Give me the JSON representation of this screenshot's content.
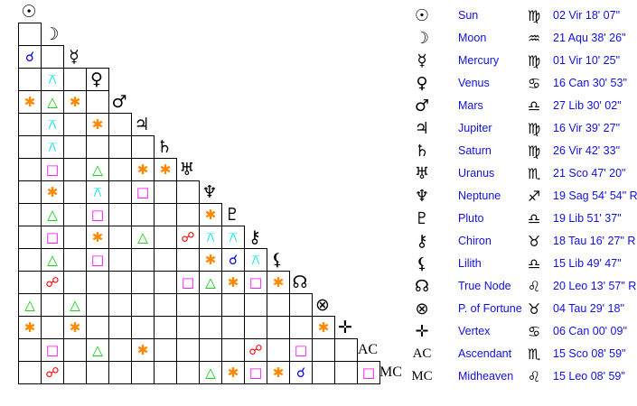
{
  "aspect_symbols": {
    "conjunction": {
      "glyph": "☌",
      "color": "#0000ff"
    },
    "sextile": {
      "glyph": "✱",
      "color": "#ff8800"
    },
    "trine": {
      "glyph": "△",
      "color": "#00cc00"
    },
    "square": {
      "glyph": "□",
      "color": "#ff00ff"
    },
    "opposition": {
      "glyph": "☍",
      "color": "#ff0000"
    },
    "quincunx": {
      "glyph": "⚻",
      "color": "#00e5e5"
    }
  },
  "bodies": [
    {
      "icon": "sun-icon",
      "glyph": "☉",
      "name": "Sun",
      "sign_icon": "virgo-icon",
      "sign": "♍",
      "position": "02 Vir 18' 07\""
    },
    {
      "icon": "moon-icon",
      "glyph": "☽",
      "name": "Moon",
      "sign_icon": "aquarius-icon",
      "sign": "♒",
      "position": "21 Aqu 38' 26\""
    },
    {
      "icon": "mercury-icon",
      "glyph": "☿",
      "name": "Mercury",
      "sign_icon": "virgo-icon",
      "sign": "♍",
      "position": "01 Vir 10' 25\""
    },
    {
      "icon": "venus-icon",
      "glyph": "♀",
      "name": "Venus",
      "sign_icon": "cancer-icon",
      "sign": "♋",
      "position": "16 Can 30' 53\""
    },
    {
      "icon": "mars-icon",
      "glyph": "♂",
      "name": "Mars",
      "sign_icon": "libra-icon",
      "sign": "♎",
      "position": "27 Lib 30' 02\""
    },
    {
      "icon": "jupiter-icon",
      "glyph": "♃",
      "name": "Jupiter",
      "sign_icon": "virgo-icon",
      "sign": "♍",
      "position": "16 Vir 39' 27\""
    },
    {
      "icon": "saturn-icon",
      "glyph": "♄",
      "name": "Saturn",
      "sign_icon": "virgo-icon",
      "sign": "♍",
      "position": "26 Vir 42' 33\""
    },
    {
      "icon": "uranus-icon",
      "glyph": "♅",
      "name": "Uranus",
      "sign_icon": "scorpio-icon",
      "sign": "♏",
      "position": "21 Sco 47' 20\""
    },
    {
      "icon": "neptune-icon",
      "glyph": "♆",
      "name": "Neptune",
      "sign_icon": "sagittarius-icon",
      "sign": "♐",
      "position": "19 Sag 54' 54\" R"
    },
    {
      "icon": "pluto-icon",
      "glyph": "♇",
      "name": "Pluto",
      "sign_icon": "libra-icon",
      "sign": "♎",
      "position": "19 Lib 51' 37\""
    },
    {
      "icon": "chiron-icon",
      "glyph": "⚷",
      "name": "Chiron",
      "sign_icon": "taurus-icon",
      "sign": "♉",
      "position": "18 Tau 16' 27\" R"
    },
    {
      "icon": "lilith-icon",
      "glyph": "⚸",
      "name": "Lilith",
      "sign_icon": "libra-icon",
      "sign": "♎",
      "position": "15 Lib 49' 47\""
    },
    {
      "icon": "true-node-icon",
      "glyph": "☊",
      "name": "True Node",
      "sign_icon": "leo-icon",
      "sign": "♌",
      "position": "20 Leo 13' 57\" R"
    },
    {
      "icon": "part-of-fortune-icon",
      "glyph": "⊗",
      "name": "P. of Fortune",
      "sign_icon": "taurus-icon",
      "sign": "♉",
      "position": "04 Tau 29' 18\""
    },
    {
      "icon": "vertex-icon",
      "glyph": "✛",
      "name": "Vertex",
      "sign_icon": "cancer-icon",
      "sign": "♋",
      "position": "06 Can 00' 09\""
    },
    {
      "icon": "ascendant-icon",
      "glyph": "AC",
      "name": "Ascendant",
      "sign_icon": "scorpio-icon",
      "sign": "♏",
      "position": "15 Sco 08' 59\""
    },
    {
      "icon": "midheaven-icon",
      "glyph": "MC",
      "name": "Midheaven",
      "sign_icon": "leo-icon",
      "sign": "♌",
      "position": "15 Leo 08' 59\""
    }
  ],
  "aspect_grid": [
    [
      ""
    ],
    [
      "conjunction",
      ""
    ],
    [
      "",
      "quincunx",
      "",
      ""
    ],
    [
      "sextile",
      "trine",
      "sextile",
      ""
    ],
    [
      "",
      "quincunx",
      "",
      "sextile",
      ""
    ],
    [
      "",
      "quincunx",
      "",
      "",
      "",
      ""
    ],
    [
      "",
      "square",
      "",
      "trine",
      "",
      "sextile",
      "sextile"
    ],
    [
      "",
      "sextile",
      "",
      "quincunx",
      "",
      "square",
      "",
      ""
    ],
    [
      "",
      "trine",
      "",
      "square",
      "",
      "",
      "",
      "",
      "sextile"
    ],
    [
      "",
      "square",
      "",
      "sextile",
      "",
      "trine",
      "",
      "opposition",
      "quincunx",
      "quincunx"
    ],
    [
      "",
      "trine",
      "",
      "square",
      "",
      "",
      "",
      "",
      "sextile",
      "conjunction",
      "quincunx"
    ],
    [
      "",
      "opposition",
      "",
      "",
      "",
      "",
      "",
      "square",
      "trine",
      "sextile",
      "square",
      "sextile"
    ],
    [
      "trine",
      "",
      "trine",
      "",
      "",
      "",
      "",
      "",
      "",
      "",
      "",
      "",
      ""
    ],
    [
      "sextile",
      "",
      "sextile",
      "",
      "",
      "",
      "",
      "",
      "",
      "",
      "",
      "",
      "",
      "sextile"
    ],
    [
      "",
      "square",
      "",
      "trine",
      "",
      "sextile",
      "",
      "",
      "",
      "",
      "opposition",
      "",
      "square",
      "",
      ""
    ],
    [
      "",
      "opposition",
      "",
      "",
      "",
      "",
      "",
      "",
      "trine",
      "sextile",
      "square",
      "sextile",
      "conjunction",
      "",
      "",
      "square"
    ]
  ]
}
